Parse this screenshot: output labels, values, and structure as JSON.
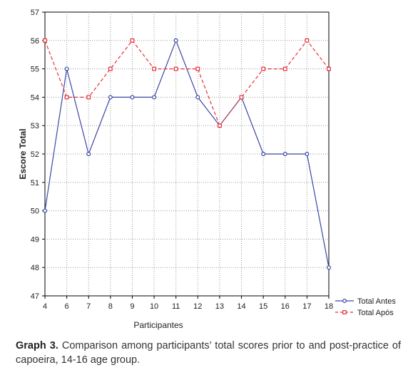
{
  "chart_data": {
    "type": "line",
    "categories": [
      "4",
      "6",
      "7",
      "8",
      "9",
      "10",
      "11",
      "12",
      "13",
      "14",
      "15",
      "16",
      "17",
      "18"
    ],
    "series": [
      {
        "name": "Total Antes",
        "values": [
          50,
          55,
          52,
          54,
          54,
          54,
          56,
          54,
          53,
          54,
          52,
          52,
          52,
          48
        ],
        "color": "#3a46a6",
        "style": "solid",
        "marker": "circle"
      },
      {
        "name": "Total Após",
        "values": [
          56,
          54,
          54,
          55,
          56,
          55,
          55,
          55,
          53,
          54,
          55,
          55,
          56,
          55
        ],
        "color": "#e8303a",
        "style": "dashed",
        "marker": "square"
      }
    ],
    "xlabel": "Participantes",
    "ylabel": "Escore Total",
    "ylim": [
      47,
      57
    ],
    "yticks": [
      47,
      48,
      49,
      50,
      51,
      52,
      53,
      54,
      55,
      56,
      57
    ],
    "grid": true,
    "legend_position": "bottom-right, outside plot"
  },
  "caption": {
    "label": "Graph 3.",
    "text": "Comparison among participants’ total scores prior to and post-practice of capoeira, 14-16 age group."
  }
}
